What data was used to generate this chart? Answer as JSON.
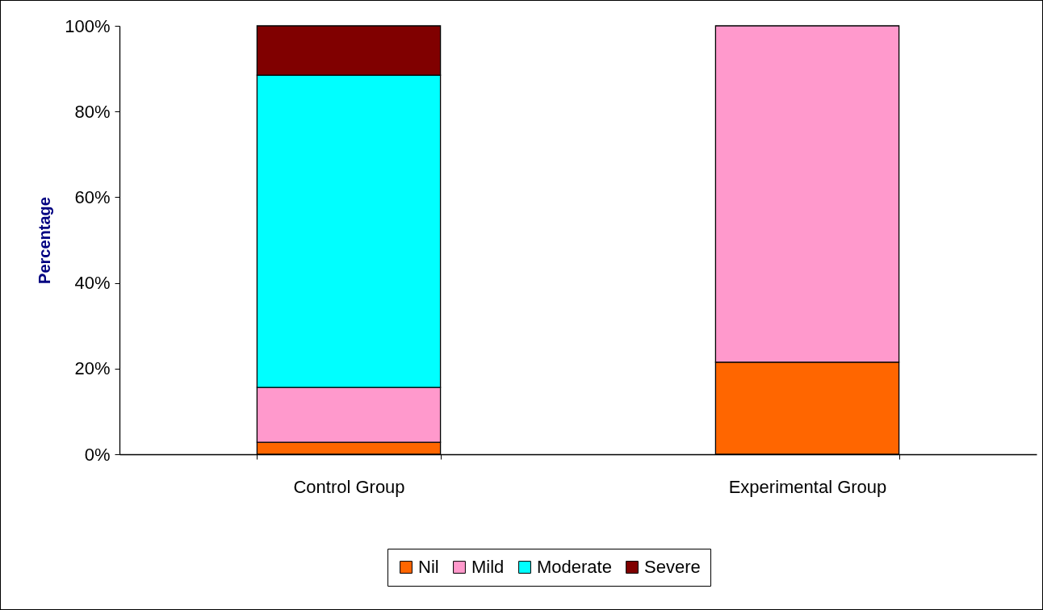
{
  "chart_data": {
    "type": "bar",
    "stacked": true,
    "ylabel": "Percentage",
    "categories": [
      "Control Group",
      "Experimental Group"
    ],
    "series": [
      {
        "name": "Nil",
        "color": "#ff6600",
        "values": [
          2.8,
          21.5
        ]
      },
      {
        "name": "Mild",
        "color": "#ff99cc",
        "values": [
          12.8,
          78.5
        ]
      },
      {
        "name": "Moderate",
        "color": "#00ffff",
        "values": [
          72.9,
          null
        ]
      },
      {
        "name": "Severe",
        "color": "#800000",
        "values": [
          11.5,
          null
        ]
      }
    ],
    "ylim": [
      0,
      100
    ],
    "yticks": [
      {
        "value": 0,
        "label": "0%"
      },
      {
        "value": 20,
        "label": "20%"
      },
      {
        "value": 40,
        "label": "40%"
      },
      {
        "value": 60,
        "label": "60%"
      },
      {
        "value": 80,
        "label": "80%"
      },
      {
        "value": 100,
        "label": "100%"
      }
    ],
    "grid": false,
    "legend": "bottom"
  }
}
